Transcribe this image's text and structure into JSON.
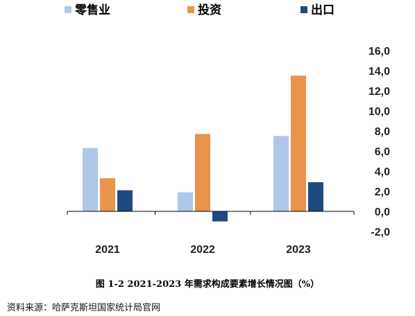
{
  "chart_data": {
    "type": "bar",
    "categories": [
      "2021",
      "2022",
      "2023"
    ],
    "series": [
      {
        "name": "零售业",
        "values": [
          6.3,
          1.9,
          7.5
        ],
        "color": "#adc8e8"
      },
      {
        "name": "投资",
        "values": [
          3.3,
          7.7,
          13.5
        ],
        "color": "#e9934b"
      },
      {
        "name": "出口",
        "values": [
          2.1,
          -1.0,
          2.9
        ],
        "color": "#1f4a80"
      }
    ],
    "yticks": [
      "16,0",
      "14,0",
      "12,0",
      "10,0",
      "8,0",
      "6,0",
      "4,0",
      "2,0",
      "0,0",
      "-2,0"
    ],
    "ytick_values": [
      16,
      14,
      12,
      10,
      8,
      6,
      4,
      2,
      0,
      -2
    ],
    "ylim": [
      -2,
      16
    ],
    "grid": false,
    "legend_position": "top",
    "title": ""
  },
  "caption": "图 1-2 2021-2023 年需求构成要素增长情况图（%）",
  "source": "资料来源：哈萨克斯坦国家统计局官网"
}
